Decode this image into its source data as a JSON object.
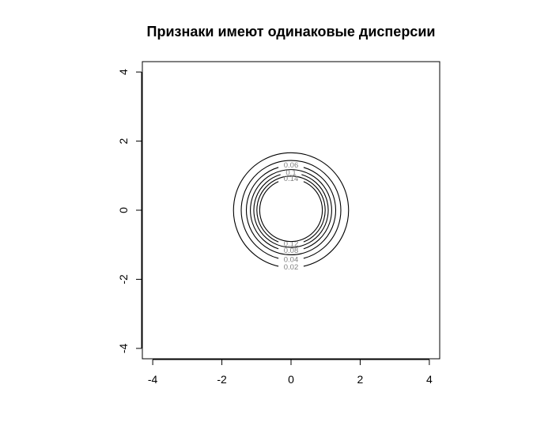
{
  "chart_data": {
    "type": "contour",
    "title": "Признаки имеют одинаковые дисперсии",
    "xlabel": "",
    "ylabel": "",
    "xlim": [
      -4.3,
      4.3
    ],
    "ylim": [
      -4.3,
      4.3
    ],
    "x_ticks": [
      -4,
      -2,
      0,
      2,
      4
    ],
    "y_ticks": [
      -4,
      -2,
      0,
      2,
      4
    ],
    "x_tick_labels": [
      "-4",
      "-2",
      "0",
      "2",
      "4"
    ],
    "y_tick_labels": [
      "-4",
      "-2",
      "0",
      "2",
      "4"
    ],
    "grid": false,
    "distribution": {
      "kind": "bivariate normal",
      "mean": [
        0,
        0
      ],
      "variance": [
        0.5,
        0.5
      ],
      "covariance": 0
    },
    "contour_levels": [
      0.02,
      0.04,
      0.06,
      0.08,
      0.1,
      0.12,
      0.14
    ],
    "contour_labels": [
      "0.02",
      "0.04",
      "0.06",
      "0.08",
      "0.1",
      "0.12",
      "0.14"
    ],
    "label_positions": [
      "bottom",
      "bottom",
      "top",
      "bottom",
      "top",
      "bottom",
      "top"
    ],
    "line_color": "#000000",
    "label_color": "#808080"
  }
}
